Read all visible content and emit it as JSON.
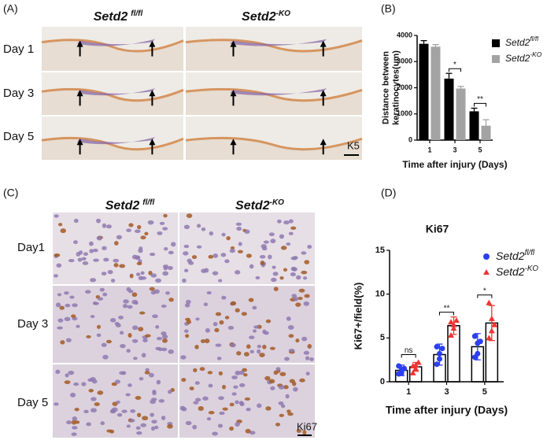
{
  "panel_labels": [
    "(A)",
    "(B)",
    "(C)",
    "(D)"
  ],
  "panel_a": {
    "columns": [
      {
        "text": "Setd2",
        "sup": "fl/fl"
      },
      {
        "text": "Setd2",
        "sup": "-KO"
      }
    ],
    "rows": [
      "Day 1",
      "Day 3",
      "Day 5"
    ],
    "stain": "K5"
  },
  "panel_c": {
    "columns": [
      {
        "text": "Setd2",
        "sup": "fl/fl"
      },
      {
        "text": "Setd2",
        "sup": "-KO"
      }
    ],
    "rows": [
      "Day1",
      "Day 3",
      "Day 5"
    ],
    "stain": "Ki67"
  },
  "chart_data": [
    {
      "type": "bar",
      "xlabel": "Time after injury (Days)",
      "ylabel": [
        "Distance between",
        "keratinocytes(um)"
      ],
      "categories": [
        "1",
        "3",
        "5"
      ],
      "ylim": [
        0,
        4000
      ],
      "yticks": [
        0,
        1000,
        2000,
        3000,
        4000
      ],
      "series": [
        {
          "name": "Setd2",
          "name_sup": "fl/fl",
          "color": "#000000",
          "values": [
            3680,
            2350,
            1100
          ],
          "errors": [
            120,
            200,
            120
          ]
        },
        {
          "name": "Setd2",
          "name_sup": "-KO",
          "color": "#a3a3a3",
          "values": [
            3570,
            1970,
            550
          ],
          "errors": [
            80,
            80,
            230
          ]
        }
      ],
      "annotations": [
        "*",
        "**"
      ]
    },
    {
      "type": "bar",
      "title": "Ki67",
      "xlabel": "Time after injury (Days)",
      "ylabel": [
        "Ki67+/field(%)"
      ],
      "categories": [
        "1",
        "3",
        "5"
      ],
      "ylim": [
        0,
        15
      ],
      "yticks": [
        0,
        5,
        10,
        15
      ],
      "bar_outline": "#000000",
      "series": [
        {
          "name": "Setd2",
          "name_sup": "fl/fl",
          "color": "#2b3ff0",
          "marker": "circle",
          "values": [
            1.3,
            3.1,
            4.0
          ],
          "errors": [
            0.6,
            1.2,
            1.5
          ],
          "points": [
            [
              0.9,
              1.0,
              1.5,
              1.8,
              1.3
            ],
            [
              2.0,
              2.6,
              3.8,
              4.0,
              3.2
            ],
            [
              2.8,
              3.2,
              4.6,
              5.2,
              4.4
            ]
          ]
        },
        {
          "name": "Setd2",
          "name_sup": "-KO",
          "color": "#ef3434",
          "marker": "triangle",
          "values": [
            1.7,
            6.4,
            6.7
          ],
          "errors": [
            0.5,
            1.0,
            2.0
          ],
          "points": [
            [
              1.0,
              1.5,
              2.2,
              1.8,
              1.9
            ],
            [
              5.3,
              6.5,
              7.0,
              6.8,
              6.1
            ],
            [
              5.0,
              5.8,
              6.5,
              9.0,
              7.2
            ]
          ]
        }
      ],
      "annotations": [
        "ns",
        "**",
        "*"
      ]
    }
  ]
}
